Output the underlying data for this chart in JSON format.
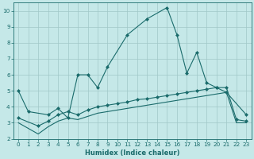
{
  "title": "",
  "xlabel": "Humidex (Indice chaleur)",
  "bg_color": "#c5e8e8",
  "grid_color": "#a0c8c8",
  "line_color": "#1a6b6b",
  "xlim": [
    -0.5,
    23.5
  ],
  "ylim": [
    2,
    10.5
  ],
  "xticks": [
    0,
    1,
    2,
    3,
    4,
    5,
    6,
    7,
    8,
    9,
    10,
    11,
    12,
    13,
    14,
    15,
    16,
    17,
    18,
    19,
    20,
    21,
    22,
    23
  ],
  "yticks": [
    2,
    3,
    4,
    5,
    6,
    7,
    8,
    9,
    10
  ],
  "line1_x": [
    0,
    1,
    3,
    4,
    5,
    6,
    7,
    8,
    9,
    11,
    13,
    15,
    16,
    17,
    18,
    19,
    20,
    21,
    23
  ],
  "line1_y": [
    5.0,
    3.7,
    3.5,
    3.9,
    3.3,
    6.0,
    6.0,
    5.2,
    6.5,
    8.5,
    9.5,
    10.2,
    8.5,
    6.1,
    7.4,
    5.5,
    5.2,
    4.9,
    3.5
  ],
  "line2_x": [
    0,
    2,
    3,
    4,
    5,
    6,
    7,
    8,
    9,
    10,
    11,
    12,
    13,
    14,
    15,
    16,
    17,
    18,
    19,
    20,
    21,
    22,
    23
  ],
  "line2_y": [
    3.3,
    2.8,
    3.1,
    3.5,
    3.7,
    3.5,
    3.8,
    4.0,
    4.1,
    4.2,
    4.3,
    4.45,
    4.5,
    4.6,
    4.7,
    4.8,
    4.9,
    5.0,
    5.1,
    5.2,
    5.2,
    3.2,
    3.1
  ],
  "line3_x": [
    0,
    2,
    3,
    4,
    5,
    6,
    7,
    8,
    9,
    10,
    11,
    12,
    13,
    14,
    15,
    16,
    17,
    18,
    19,
    20,
    21,
    22,
    23
  ],
  "line3_y": [
    3.0,
    2.3,
    2.75,
    3.1,
    3.3,
    3.2,
    3.4,
    3.6,
    3.7,
    3.8,
    3.9,
    4.0,
    4.1,
    4.2,
    4.3,
    4.4,
    4.5,
    4.6,
    4.7,
    4.8,
    4.9,
    3.0,
    3.0
  ],
  "xlabel_fontsize": 6.0,
  "tick_fontsize": 5.2
}
